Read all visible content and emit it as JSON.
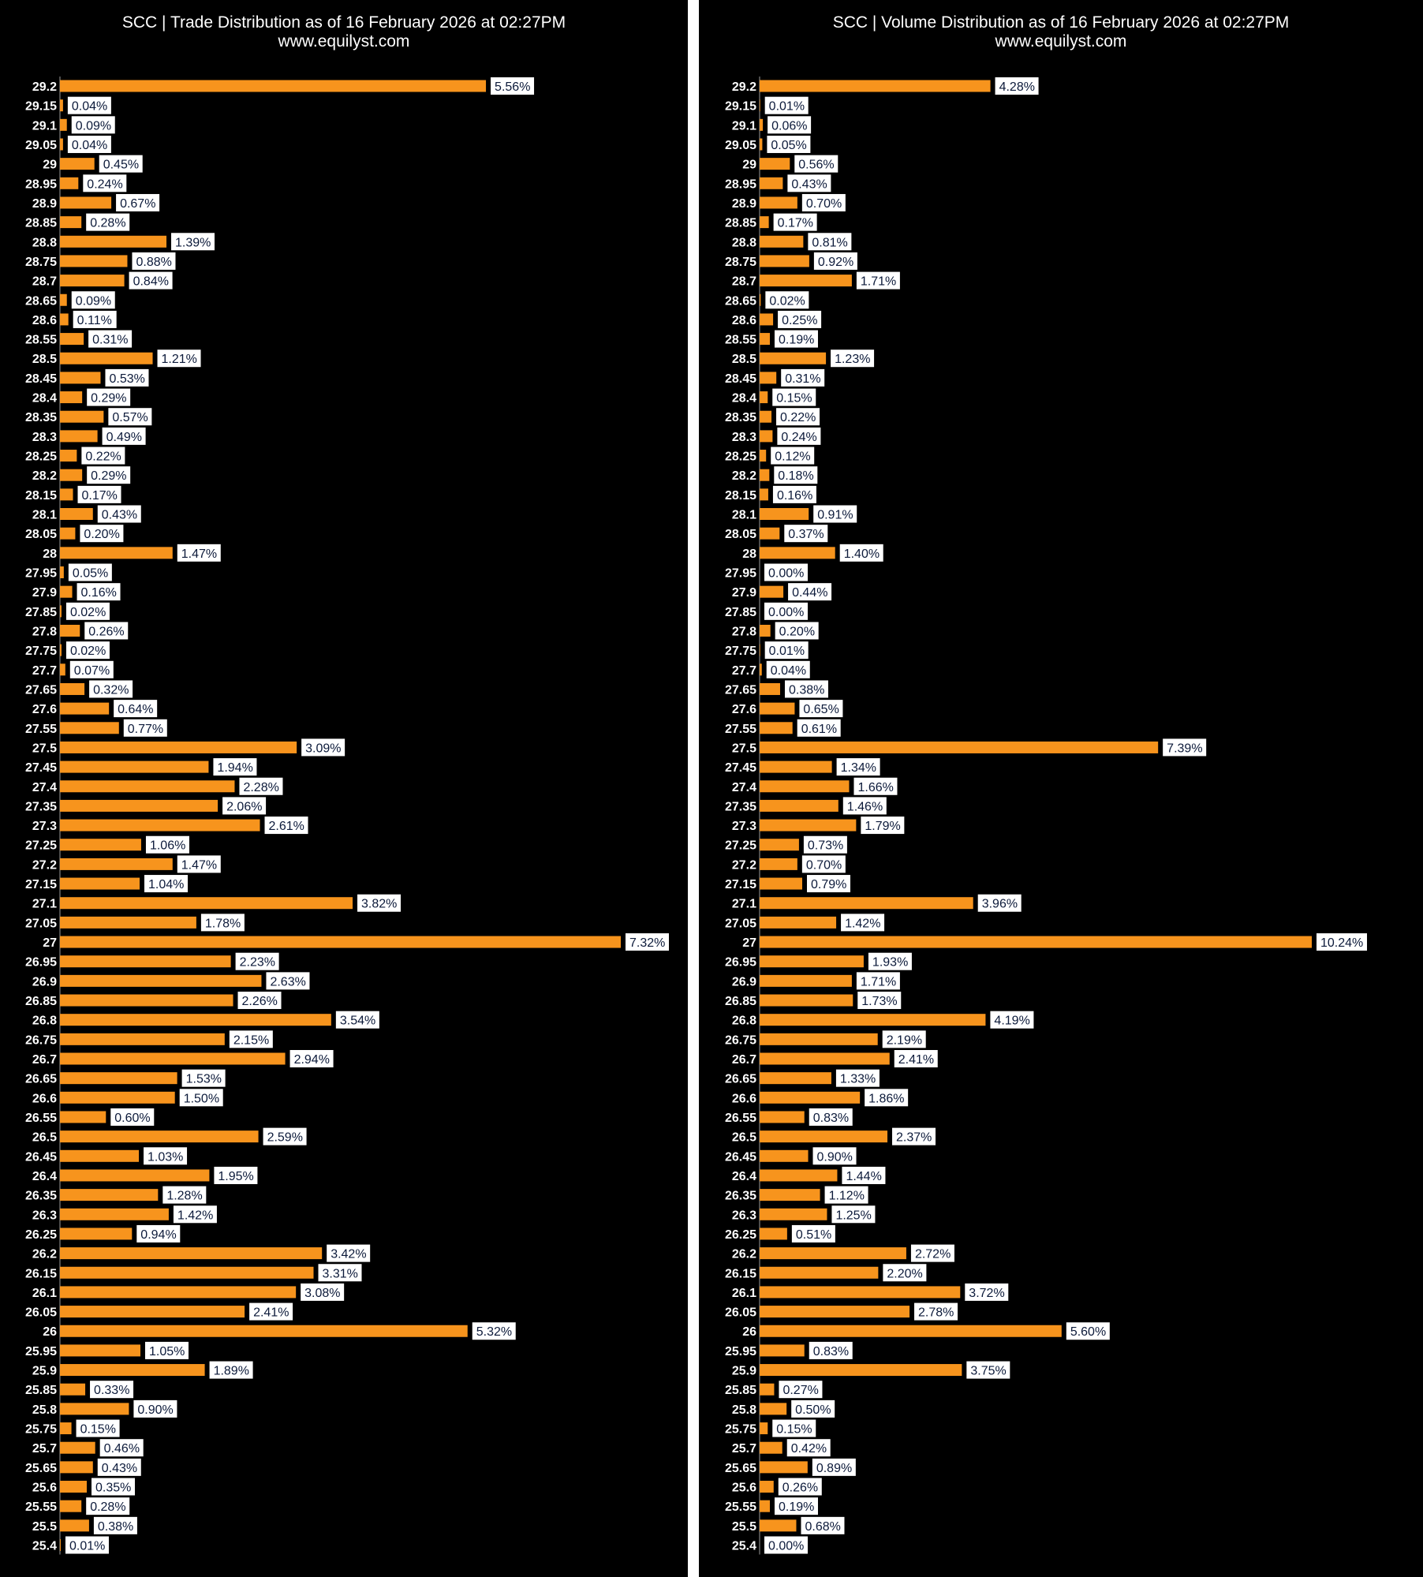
{
  "colors": {
    "bar": "#f7941d",
    "background": "#000000",
    "label_box": "#ffffff",
    "label_text": "#0c1a3a"
  },
  "categories": [
    "29.2",
    "29.15",
    "29.1",
    "29.05",
    "29",
    "28.95",
    "28.9",
    "28.85",
    "28.8",
    "28.75",
    "28.7",
    "28.65",
    "28.6",
    "28.55",
    "28.5",
    "28.45",
    "28.4",
    "28.35",
    "28.3",
    "28.25",
    "28.2",
    "28.15",
    "28.1",
    "28.05",
    "28",
    "27.95",
    "27.9",
    "27.85",
    "27.8",
    "27.75",
    "27.7",
    "27.65",
    "27.6",
    "27.55",
    "27.5",
    "27.45",
    "27.4",
    "27.35",
    "27.3",
    "27.25",
    "27.2",
    "27.15",
    "27.1",
    "27.05",
    "27",
    "26.95",
    "26.9",
    "26.85",
    "26.8",
    "26.75",
    "26.7",
    "26.65",
    "26.6",
    "26.55",
    "26.5",
    "26.45",
    "26.4",
    "26.35",
    "26.3",
    "26.25",
    "26.2",
    "26.15",
    "26.1",
    "26.05",
    "26",
    "25.95",
    "25.9",
    "25.85",
    "25.8",
    "25.75",
    "25.7",
    "25.65",
    "25.6",
    "25.55",
    "25.5",
    "25.4"
  ],
  "chart_data": [
    {
      "type": "bar",
      "orientation": "horizontal",
      "title_line1": "SCC | Trade Distribution as of 16 February 2026 at 02:27PM",
      "title_line2": "www.equilyst.com",
      "categories": [
        "29.2",
        "29.15",
        "29.1",
        "29.05",
        "29",
        "28.95",
        "28.9",
        "28.85",
        "28.8",
        "28.75",
        "28.7",
        "28.65",
        "28.6",
        "28.55",
        "28.5",
        "28.45",
        "28.4",
        "28.35",
        "28.3",
        "28.25",
        "28.2",
        "28.15",
        "28.1",
        "28.05",
        "28",
        "27.95",
        "27.9",
        "27.85",
        "27.8",
        "27.75",
        "27.7",
        "27.65",
        "27.6",
        "27.55",
        "27.5",
        "27.45",
        "27.4",
        "27.35",
        "27.3",
        "27.25",
        "27.2",
        "27.15",
        "27.1",
        "27.05",
        "27",
        "26.95",
        "26.9",
        "26.85",
        "26.8",
        "26.75",
        "26.7",
        "26.65",
        "26.6",
        "26.55",
        "26.5",
        "26.45",
        "26.4",
        "26.35",
        "26.3",
        "26.25",
        "26.2",
        "26.15",
        "26.1",
        "26.05",
        "26",
        "25.95",
        "25.9",
        "25.85",
        "25.8",
        "25.75",
        "25.7",
        "25.65",
        "25.6",
        "25.55",
        "25.5",
        "25.4"
      ],
      "values": [
        5.56,
        0.04,
        0.09,
        0.04,
        0.45,
        0.24,
        0.67,
        0.28,
        1.39,
        0.88,
        0.84,
        0.09,
        0.11,
        0.31,
        1.21,
        0.53,
        0.29,
        0.57,
        0.49,
        0.22,
        0.29,
        0.17,
        0.43,
        0.2,
        1.47,
        0.05,
        0.16,
        0.02,
        0.26,
        0.02,
        0.07,
        0.32,
        0.64,
        0.77,
        3.09,
        1.94,
        2.28,
        2.06,
        2.61,
        1.06,
        1.47,
        1.04,
        3.82,
        1.78,
        7.32,
        2.23,
        2.63,
        2.26,
        3.54,
        2.15,
        2.94,
        1.53,
        1.5,
        0.6,
        2.59,
        1.03,
        1.95,
        1.28,
        1.42,
        0.94,
        3.42,
        3.31,
        3.08,
        2.41,
        5.32,
        1.05,
        1.89,
        0.33,
        0.9,
        0.15,
        0.46,
        0.43,
        0.35,
        0.28,
        0.38,
        0.01
      ],
      "labels": [
        "5.56%",
        "0.04%",
        "0.09%",
        "0.04%",
        "0.45%",
        "0.24%",
        "0.67%",
        "0.28%",
        "1.39%",
        "0.88%",
        "0.84%",
        "0.09%",
        "0.11%",
        "0.31%",
        "1.21%",
        "0.53%",
        "0.29%",
        "0.57%",
        "0.49%",
        "0.22%",
        "0.29%",
        "0.17%",
        "0.43%",
        "0.20%",
        "1.47%",
        "0.05%",
        "0.16%",
        "0.02%",
        "0.26%",
        "0.02%",
        "0.07%",
        "0.32%",
        "0.64%",
        "0.77%",
        "3.09%",
        "1.94%",
        "2.28%",
        "2.06%",
        "2.61%",
        "1.06%",
        "1.47%",
        "1.04%",
        "3.82%",
        "1.78%",
        "7.32%",
        "2.23%",
        "2.63%",
        "2.26%",
        "3.54%",
        "2.15%",
        "2.94%",
        "1.53%",
        "1.50%",
        "0.60%",
        "2.59%",
        "1.03%",
        "1.95%",
        "1.28%",
        "1.42%",
        "0.94%",
        "3.42%",
        "3.31%",
        "3.08%",
        "2.41%",
        "5.32%",
        "1.05%",
        "1.89%",
        "0.33%",
        "0.90%",
        "0.15%",
        "0.46%",
        "0.43%",
        "0.35%",
        "0.28%",
        "0.38%",
        "0.01%"
      ],
      "xlim": [
        0,
        7.32
      ]
    },
    {
      "type": "bar",
      "orientation": "horizontal",
      "title_line1": "SCC | Volume Distribution as of 16 February 2026 at 02:27PM",
      "title_line2": "www.equilyst.com",
      "categories": [
        "29.2",
        "29.15",
        "29.1",
        "29.05",
        "29",
        "28.95",
        "28.9",
        "28.85",
        "28.8",
        "28.75",
        "28.7",
        "28.65",
        "28.6",
        "28.55",
        "28.5",
        "28.45",
        "28.4",
        "28.35",
        "28.3",
        "28.25",
        "28.2",
        "28.15",
        "28.1",
        "28.05",
        "28",
        "27.95",
        "27.9",
        "27.85",
        "27.8",
        "27.75",
        "27.7",
        "27.65",
        "27.6",
        "27.55",
        "27.5",
        "27.45",
        "27.4",
        "27.35",
        "27.3",
        "27.25",
        "27.2",
        "27.15",
        "27.1",
        "27.05",
        "27",
        "26.95",
        "26.9",
        "26.85",
        "26.8",
        "26.75",
        "26.7",
        "26.65",
        "26.6",
        "26.55",
        "26.5",
        "26.45",
        "26.4",
        "26.35",
        "26.3",
        "26.25",
        "26.2",
        "26.15",
        "26.1",
        "26.05",
        "26",
        "25.95",
        "25.9",
        "25.85",
        "25.8",
        "25.75",
        "25.7",
        "25.65",
        "25.6",
        "25.55",
        "25.5",
        "25.4"
      ],
      "values": [
        4.28,
        0.01,
        0.06,
        0.05,
        0.56,
        0.43,
        0.7,
        0.17,
        0.81,
        0.92,
        1.71,
        0.02,
        0.25,
        0.19,
        1.23,
        0.31,
        0.15,
        0.22,
        0.24,
        0.12,
        0.18,
        0.16,
        0.91,
        0.37,
        1.4,
        0.0,
        0.44,
        0.0,
        0.2,
        0.01,
        0.04,
        0.38,
        0.65,
        0.61,
        7.39,
        1.34,
        1.66,
        1.46,
        1.79,
        0.73,
        0.7,
        0.79,
        3.96,
        1.42,
        10.24,
        1.93,
        1.71,
        1.73,
        4.19,
        2.19,
        2.41,
        1.33,
        1.86,
        0.83,
        2.37,
        0.9,
        1.44,
        1.12,
        1.25,
        0.51,
        2.72,
        2.2,
        3.72,
        2.78,
        5.6,
        0.83,
        3.75,
        0.27,
        0.5,
        0.15,
        0.42,
        0.89,
        0.26,
        0.19,
        0.68,
        0.0
      ],
      "labels": [
        "4.28%",
        "0.01%",
        "0.06%",
        "0.05%",
        "0.56%",
        "0.43%",
        "0.70%",
        "0.17%",
        "0.81%",
        "0.92%",
        "1.71%",
        "0.02%",
        "0.25%",
        "0.19%",
        "1.23%",
        "0.31%",
        "0.15%",
        "0.22%",
        "0.24%",
        "0.12%",
        "0.18%",
        "0.16%",
        "0.91%",
        "0.37%",
        "1.40%",
        "0.00%",
        "0.44%",
        "0.00%",
        "0.20%",
        "0.01%",
        "0.04%",
        "0.38%",
        "0.65%",
        "0.61%",
        "7.39%",
        "1.34%",
        "1.66%",
        "1.46%",
        "1.79%",
        "0.73%",
        "0.70%",
        "0.79%",
        "3.96%",
        "1.42%",
        "10.24%",
        "1.93%",
        "1.71%",
        "1.73%",
        "4.19%",
        "2.19%",
        "2.41%",
        "1.33%",
        "1.86%",
        "0.83%",
        "2.37%",
        "0.90%",
        "1.44%",
        "1.12%",
        "1.25%",
        "0.51%",
        "2.72%",
        "2.20%",
        "3.72%",
        "2.78%",
        "5.60%",
        "0.83%",
        "3.75%",
        "0.27%",
        "0.50%",
        "0.15%",
        "0.42%",
        "0.89%",
        "0.26%",
        "0.19%",
        "0.68%",
        "0.00%"
      ],
      "xlim": [
        0,
        10.24
      ]
    }
  ]
}
